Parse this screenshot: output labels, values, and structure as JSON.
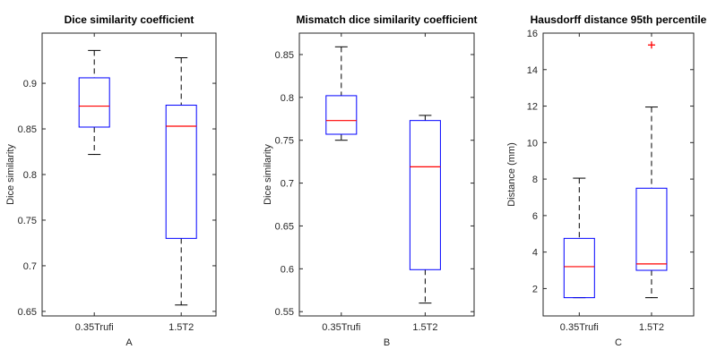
{
  "chart_data": [
    {
      "type": "box",
      "title": "Dice similarity coefficient",
      "xlabel": "A",
      "ylabel": "Dice similarity",
      "categories": [
        "0.35Trufi",
        "1.5T2"
      ],
      "ylim": [
        0.645,
        0.955
      ],
      "yticks": [
        0.65,
        0.7,
        0.75,
        0.8,
        0.85,
        0.9
      ],
      "yticklabels": [
        "0.65",
        "0.7",
        "0.75",
        "0.8",
        "0.85",
        "0.9"
      ],
      "boxes": [
        {
          "name": "0.35Trufi",
          "min": 0.822,
          "q1": 0.852,
          "median": 0.875,
          "q3": 0.906,
          "max": 0.936,
          "outliers": []
        },
        {
          "name": "1.5T2",
          "min": 0.657,
          "q1": 0.73,
          "median": 0.853,
          "q3": 0.876,
          "max": 0.928,
          "outliers": []
        }
      ]
    },
    {
      "type": "box",
      "title": "Mismatch dice similarity coefficient",
      "xlabel": "B",
      "ylabel": "Dice similarity",
      "categories": [
        "0.35Trufi",
        "1.5T2"
      ],
      "ylim": [
        0.545,
        0.875
      ],
      "yticks": [
        0.55,
        0.6,
        0.65,
        0.7,
        0.75,
        0.8,
        0.85
      ],
      "yticklabels": [
        "0.55",
        "0.6",
        "0.65",
        "0.7",
        "0.75",
        "0.8",
        "0.85"
      ],
      "boxes": [
        {
          "name": "0.35Trufi",
          "min": 0.75,
          "q1": 0.757,
          "median": 0.773,
          "q3": 0.802,
          "max": 0.859,
          "outliers": []
        },
        {
          "name": "1.5T2",
          "min": 0.56,
          "q1": 0.599,
          "median": 0.719,
          "q3": 0.773,
          "max": 0.779,
          "outliers": []
        }
      ]
    },
    {
      "type": "box",
      "title": "Hausdorff distance 95th percentile",
      "xlabel": "C",
      "ylabel": "Distance (mm)",
      "categories": [
        "0.35Trufi",
        "1.5T2"
      ],
      "ylim": [
        0.5,
        16
      ],
      "yticks": [
        2,
        4,
        6,
        8,
        10,
        12,
        14,
        16
      ],
      "yticklabels": [
        "2",
        "4",
        "6",
        "8",
        "10",
        "12",
        "14",
        "16"
      ],
      "boxes": [
        {
          "name": "0.35Trufi",
          "min": 1.5,
          "q1": 1.5,
          "median": 3.2,
          "q3": 4.75,
          "max": 8.05,
          "outliers": []
        },
        {
          "name": "1.5T2",
          "min": 1.5,
          "q1": 3.0,
          "median": 3.35,
          "q3": 7.5,
          "max": 11.95,
          "outliers": [
            15.35
          ]
        }
      ]
    }
  ],
  "colors": {
    "box": "#0000ff",
    "median": "#ff0000",
    "whisker": "#000000",
    "outlier": "#ff0000"
  }
}
